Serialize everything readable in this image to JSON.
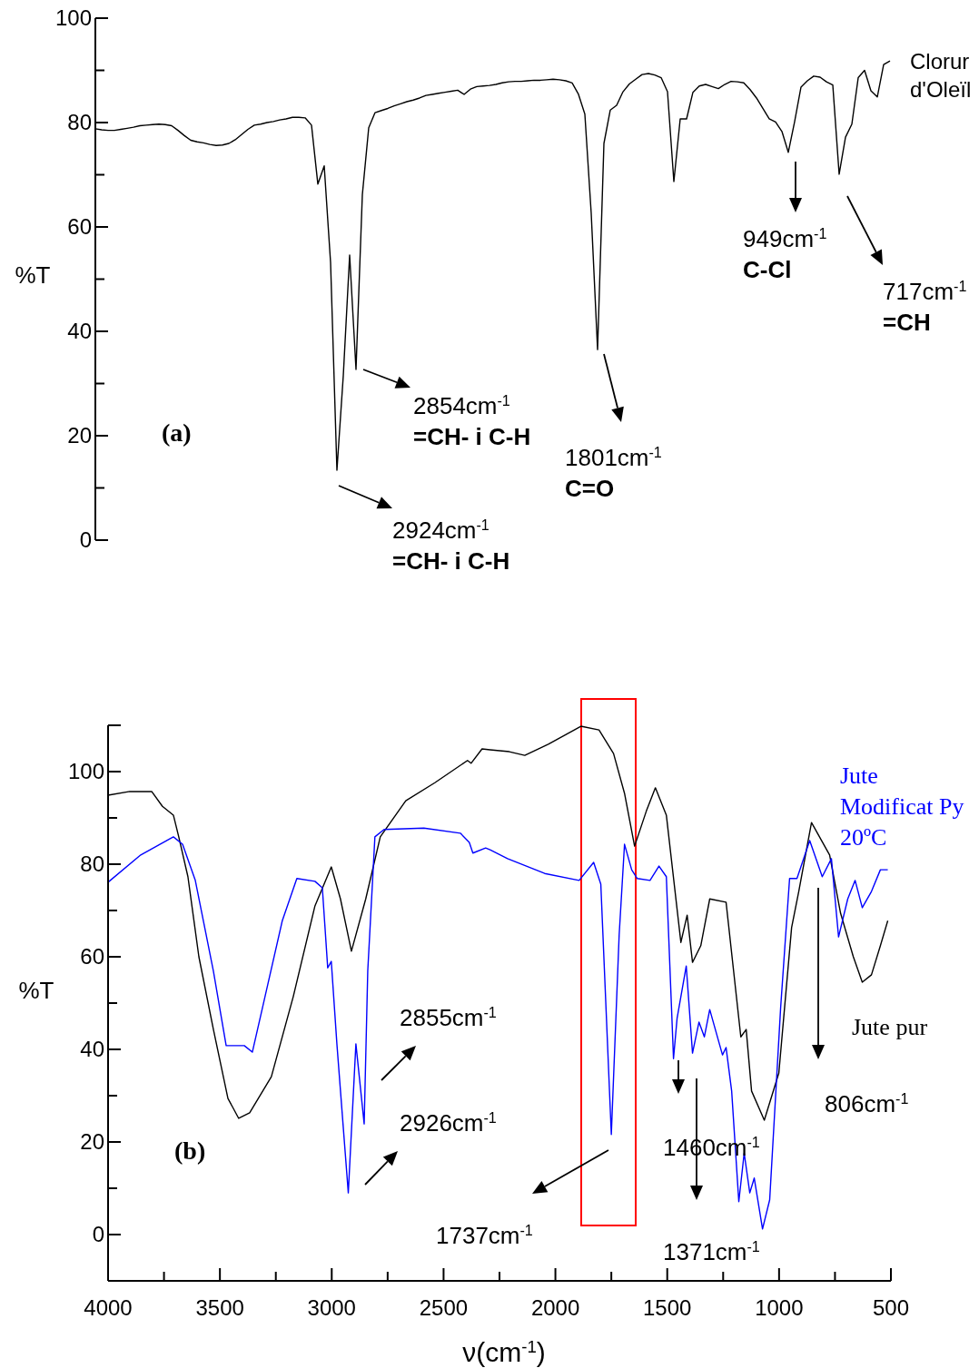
{
  "chart_data": [
    {
      "type": "line",
      "ylabel": "%T",
      "ylim": [
        0,
        100
      ],
      "categories": [
        null,
        null,
        null,
        null,
        null,
        null,
        null,
        null,
        null,
        null,
        null,
        null,
        null,
        null,
        null,
        null,
        null,
        null,
        null,
        null,
        null,
        null,
        null,
        null,
        null,
        null,
        null,
        null,
        null,
        null,
        null,
        null,
        null,
        null,
        null,
        null,
        null,
        null,
        null,
        null,
        null,
        null,
        null,
        null,
        null,
        null,
        null,
        null,
        null,
        null,
        null,
        null,
        null,
        null,
        null,
        null,
        null,
        null,
        null,
        null,
        null,
        null,
        null,
        null,
        null,
        null,
        null,
        null,
        null,
        null,
        null,
        null,
        null,
        null,
        null,
        null,
        null,
        null,
        null,
        null,
        null,
        null,
        null,
        null,
        null,
        null,
        null,
        null,
        null,
        null,
        null,
        null,
        null,
        null,
        null,
        null,
        null,
        null,
        null,
        null,
        null,
        null,
        null,
        null,
        null,
        null,
        null,
        null,
        null,
        null,
        null,
        null,
        null,
        null,
        null,
        null,
        null,
        null,
        null,
        null,
        null,
        null,
        null,
        null,
        null,
        null
      ],
      "yticks": [
        0,
        {
          "value": 10,
          "label": null
        },
        20,
        {
          "value": 30,
          "label": null
        },
        40,
        {
          "value": 50,
          "label": null
        },
        60,
        {
          "value": 70,
          "label": null
        },
        80,
        {
          "value": 90,
          "label": null
        },
        100
      ],
      "tick_labels": "y",
      "series": [
        {
          "name": "Clorur d'Oleïl",
          "color": "#000000",
          "values": [
            78.8,
            78.6,
            78.5,
            78.5,
            78.7,
            78.9,
            79.1,
            79.4,
            79.5,
            79.6,
            79.7,
            79.6,
            79.4,
            78.5,
            77.5,
            76.6,
            76.3,
            76.1,
            75.8,
            75.6,
            75.7,
            76.0,
            76.7,
            77.7,
            78.7,
            79.5,
            79.7,
            80.0,
            80.2,
            80.5,
            80.7,
            81.0,
            81.0,
            80.9,
            79.5,
            68.2,
            71.7,
            53.2,
            13.4,
            31.5,
            54.6,
            32.7,
            66.2,
            79.0,
            81.9,
            82.3,
            82.7,
            83.2,
            83.6,
            84.0,
            84.3,
            84.7,
            85.2,
            85.4,
            85.6,
            85.8,
            86.0,
            86.2,
            85.4,
            86.4,
            86.9,
            87.0,
            87.1,
            87.3,
            87.6,
            87.8,
            87.9,
            87.9,
            88.0,
            88.1,
            88.1,
            88.2,
            88.3,
            88.2,
            88.0,
            87.6,
            85.4,
            81.6,
            62.6,
            36.5,
            76.0,
            82.4,
            83.3,
            85.9,
            87.4,
            88.3,
            89.2,
            89.4,
            89.1,
            88.6,
            85.9,
            68.7,
            80.7,
            80.7,
            85.8,
            87.0,
            87.3,
            86.9,
            86.5,
            87.3,
            87.9,
            87.8,
            87.6,
            86.3,
            84.7,
            82.7,
            80.7,
            80.1,
            78.3,
            74.3,
            80.2,
            86.8,
            88.0,
            88.9,
            88.7,
            87.8,
            87.2,
            70.1,
            77.2,
            79.7,
            88.6,
            90.0,
            86.1,
            84.9,
            91.1,
            91.8
          ]
        }
      ],
      "annotations": [
        "2854cm$^{-1}$\n=CH- i C-H",
        "2924cm$^{-1}$\n=CH- i C-H",
        "1801cm$^{-1}$\nC=O",
        "949cm$^{-1}$\nC-Cl",
        "717cm$^{-1}$\n=CH",
        "(a)"
      ]
    },
    {
      "type": "line",
      "ylabel": "%T",
      "xlabel": "ν(cm$^{-1}$)",
      "xlim": [
        4000,
        500
      ],
      "ylim": [
        -10,
        110
      ],
      "xticks": [
        4000,
        {
          "value": 3750,
          "label": null
        },
        3500,
        {
          "value": 3250,
          "label": null
        },
        3000,
        {
          "value": 2750,
          "label": null
        },
        2500,
        {
          "value": 2250,
          "label": null
        },
        2000,
        {
          "value": 1750,
          "label": null
        },
        1500,
        {
          "value": 1250,
          "label": null
        },
        1000,
        {
          "value": 750,
          "label": null
        },
        500
      ],
      "yticks": [
        0,
        {
          "value": 10,
          "label": null
        },
        20,
        {
          "value": 30,
          "label": null
        },
        40,
        {
          "value": 50,
          "label": null
        },
        60,
        {
          "value": 70,
          "label": null
        },
        80,
        {
          "value": 90,
          "label": null
        },
        100,
        {
          "value": 110,
          "label": null
        }
      ],
      "series": [
        {
          "name": "Jute pur",
          "color": "#000000",
          "x": [
            4000,
            3903,
            3805,
            3757,
            3708,
            3684,
            3643,
            3594,
            3529,
            3464,
            3416,
            3367,
            3270,
            3172,
            3075,
            3002,
            2961,
            2912,
            2848,
            2783,
            2669,
            2539,
            2393,
            2377,
            2328,
            2292,
            2206,
            2137,
            2032,
            1886,
            1805,
            1740,
            1691,
            1646,
            1594,
            1553,
            1504,
            1439,
            1411,
            1387,
            1350,
            1310,
            1237,
            1171,
            1147,
            1123,
            1066,
            1001,
            944,
            912,
            855,
            774,
            725,
            668,
            628,
            587,
            547,
            514
          ],
          "values": [
            94.9,
            95.7,
            95.7,
            92.5,
            90.6,
            85.9,
            77.3,
            60.0,
            44.3,
            29.4,
            25.1,
            26.3,
            34.1,
            51.4,
            71.0,
            79.4,
            72.5,
            61.2,
            72.5,
            85.9,
            93.7,
            97.6,
            102.4,
            101.8,
            104.9,
            104.7,
            104.3,
            103.5,
            105.9,
            109.8,
            109.0,
            103.9,
            95.3,
            83.9,
            91.4,
            96.5,
            90.6,
            63.1,
            69.0,
            58.8,
            62.4,
            72.5,
            71.8,
            42.7,
            44.3,
            31.0,
            24.7,
            34.9,
            66.3,
            74.1,
            89.0,
            82.0,
            69.4,
            60.0,
            54.5,
            56.1,
            62.4,
            67.8
          ]
        },
        {
          "name": "Jute Modificat Py 20ºC",
          "color": "#0000ff",
          "x": [
            4000,
            3854,
            3708,
            3667,
            3610,
            3529,
            3472,
            3391,
            3355,
            3302,
            3221,
            3156,
            3075,
            3042,
            3018,
            3002,
            2977,
            2926,
            2892,
            2855,
            2839,
            2807,
            2766,
            2588,
            2425,
            2385,
            2369,
            2312,
            2292,
            2214,
            2048,
            1894,
            1829,
            1797,
            1750,
            1715,
            1691,
            1659,
            1634,
            1577,
            1537,
            1504,
            1472,
            1456,
            1415,
            1387,
            1358,
            1334,
            1310,
            1253,
            1237,
            1212,
            1180,
            1156,
            1131,
            1111,
            1074,
            1042,
            993,
            953,
            920,
            863,
            807,
            766,
            734,
            693,
            660,
            628,
            587,
            547,
            514
          ],
          "values": [
            76.1,
            82.0,
            85.9,
            84.3,
            76.5,
            56.9,
            40.8,
            40.8,
            39.4,
            50.6,
            67.8,
            76.9,
            76.3,
            74.9,
            57.6,
            59.0,
            41.2,
            9.0,
            41.2,
            23.9,
            56.9,
            85.9,
            87.5,
            87.8,
            86.7,
            84.7,
            82.4,
            83.5,
            83.1,
            81.2,
            78.0,
            76.5,
            80.4,
            75.7,
            21.6,
            64.7,
            84.3,
            78.8,
            76.9,
            76.5,
            79.6,
            77.3,
            38.0,
            46.7,
            58.0,
            39.2,
            45.9,
            42.7,
            48.6,
            38.8,
            40.4,
            31.0,
            7.1,
            17.6,
            9.0,
            12.2,
            1.2,
            7.5,
            49.0,
            76.9,
            76.9,
            85.1,
            77.3,
            81.2,
            64.3,
            72.5,
            76.5,
            70.6,
            74.1,
            78.8,
            78.8
          ]
        }
      ],
      "annotations": [
        "2855cm$^{-1}$",
        "2926cm$^{-1}$",
        "1737cm$^{-1}$",
        "1460cm$^{-1}$",
        "1371cm$^{-1}$",
        "806cm$^{-1}$",
        "(b)"
      ]
    }
  ]
}
